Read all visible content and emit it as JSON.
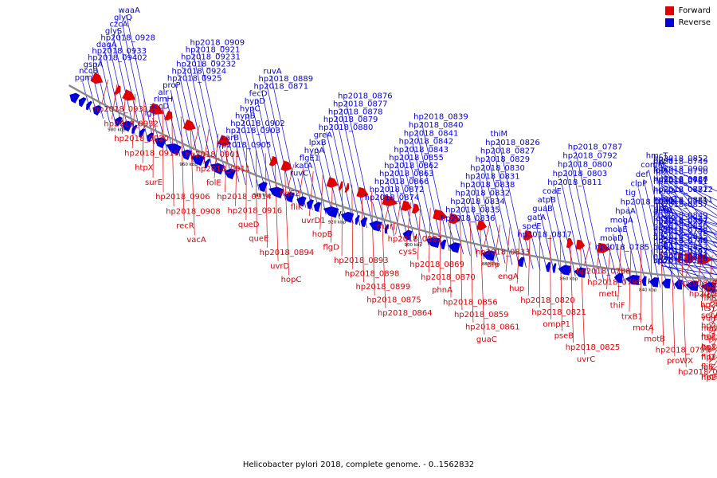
{
  "legend": {
    "forward_label": "Forward",
    "reverse_label": "Reverse",
    "forward_color": "#e00000",
    "reverse_color": "#0000dd"
  },
  "caption": "Helicobacter pylori 2018, complete genome. - 0..1562832",
  "backbone_color": "#888888",
  "ticks": [
    "980 kbp",
    "960 kbp",
    "940 kbp",
    "920 kbp",
    "900 kbp",
    "880 kbp",
    "860 kbp",
    "840 kbp",
    "820 kbp",
    "800 kbp",
    "780 kbp",
    "760 kbp"
  ],
  "reverse_labels": [
    "pgm",
    "nccB",
    "gspA",
    "hp2018_09402",
    "hp2018_0933",
    "dagA",
    "hp2018_0928",
    "glyS",
    "czcA",
    "glyQ",
    "waaA",
    "lgt",
    "accD",
    "rlmH",
    "alr",
    "proP",
    "hp2018_0925",
    "hp2018_0924",
    "hp2018_09232",
    "hp2018_09231",
    "hp2018_0921",
    "hp2018_0909",
    "hp2018_0905",
    "carB",
    "hp2018_0903",
    "hp2018_0902",
    "hypB",
    "hypC",
    "hypD",
    "fecD",
    "hp2018_0871",
    "hp2018_0889",
    "ruvA",
    "ruvC",
    "katA",
    "flgE1",
    "hypA",
    "lpxB",
    "greA",
    "hp2018_0880",
    "hp2018_0879",
    "hp2018_0878",
    "hp2018_0877",
    "hp2018_0876",
    "hp2018_0874",
    "hp2018_0872",
    "hp2018_0866",
    "hp2018_0863",
    "hp2018_0862",
    "hp2018_0855",
    "hp2018_0843",
    "hp2018_0842",
    "hp2018_0841",
    "hp2018_0840",
    "hp2018_0839",
    "hp2018_0836",
    "hp2018_0835",
    "hp2018_0834",
    "hp2018_0832",
    "hp2018_0838",
    "hp2018_0831",
    "hp2018_0830",
    "hp2018_0829",
    "hp2018_0827",
    "hp2018_0826",
    "thiM",
    "hp2018_0817",
    "speE",
    "gatA",
    "guaB",
    "atpB",
    "coaE",
    "hp2018_0811",
    "hp2018_0803",
    "hp2018_0800",
    "hp2018_0792",
    "hp2018_0787",
    "hp2018_0785",
    "moaD",
    "moaE",
    "mogA",
    "hpaA",
    "hp2018_0778",
    "tig",
    "clpP",
    "def",
    "comM",
    "hmcT",
    "hp2018_0794",
    "folB1",
    "fliL",
    "acpS",
    "fecA2",
    "ribA",
    "moaC",
    "hp2018_0772",
    "hp2018_0767",
    "lolA",
    "pyrH",
    "spoT",
    "hp2018_0762",
    "hp2018_0760",
    "hp2018_0758",
    "hp2018_0757",
    "amiA",
    "hp2018_0755",
    "moaA",
    "hp2018_0751",
    "hp2018_0750",
    "hp2018_0749",
    "hp2018_0748",
    "hp2018_0747",
    "hp2018_0743",
    "hp2018_0742",
    "hp2018_0887",
    "ackA",
    "hp2018_08811",
    "hp2018_08812",
    "hp2018_0886",
    "hp2018_0900",
    "hp2018_0852",
    "hp2018_0844",
    "hp2018_0853",
    "hp2018_0845",
    "hp2018_0846",
    "hp2018_0849",
    "hp2018_0857"
  ],
  "forward_labels": [
    "hp2018_0931",
    "hp2018_0932",
    "hp2018_0920",
    "hp2018_0919",
    "htpX",
    "surE",
    "hp2018_0906",
    "hp2018_0908",
    "recR",
    "vacA",
    "hp2018_0901",
    "hp2018_0911",
    "folE",
    "hp2018_0914",
    "hp2018_0916",
    "queD",
    "queE",
    "hp2018_0894",
    "uvrD",
    "hopC",
    "flgE2",
    "fliK",
    "uvrD1",
    "hopB",
    "flgD",
    "hp2018_0893",
    "hp2018_0898",
    "hp2018_0899",
    "hp2018_0875",
    "hp2018_0864",
    "murJ",
    "hp2018_0882",
    "cysS",
    "hp2018_0869",
    "hp2018_0870",
    "phnA",
    "hp2018_0856",
    "hp2018_0859",
    "hp2018_0861",
    "guaC",
    "hp2018_0833",
    "dfp",
    "engA",
    "hup",
    "hp2018_0820",
    "hp2018_0821",
    "ompP1",
    "pseB",
    "hp2018_0825",
    "uvrC",
    "hp2018_0788",
    "hp2018_0795",
    "metL",
    "thiF",
    "trxB1",
    "motA",
    "motB",
    "hp2018_0799",
    "proWX",
    "hp2018_0802",
    "hp2018_0804",
    "hp2018_0807",
    "hp2018_0808",
    "secA",
    "hp2018_0763",
    "hp2018_0764",
    "hp2018_0765",
    "hp2018_0766",
    "lolC",
    "hp2018_0771",
    "mobA",
    "flhB1",
    "ftsY",
    "vuiF",
    "matE",
    "ftsE",
    "ftsX",
    "fliD",
    "fliS",
    "moeB",
    "hp2018_0744",
    "hp2018_0745"
  ]
}
